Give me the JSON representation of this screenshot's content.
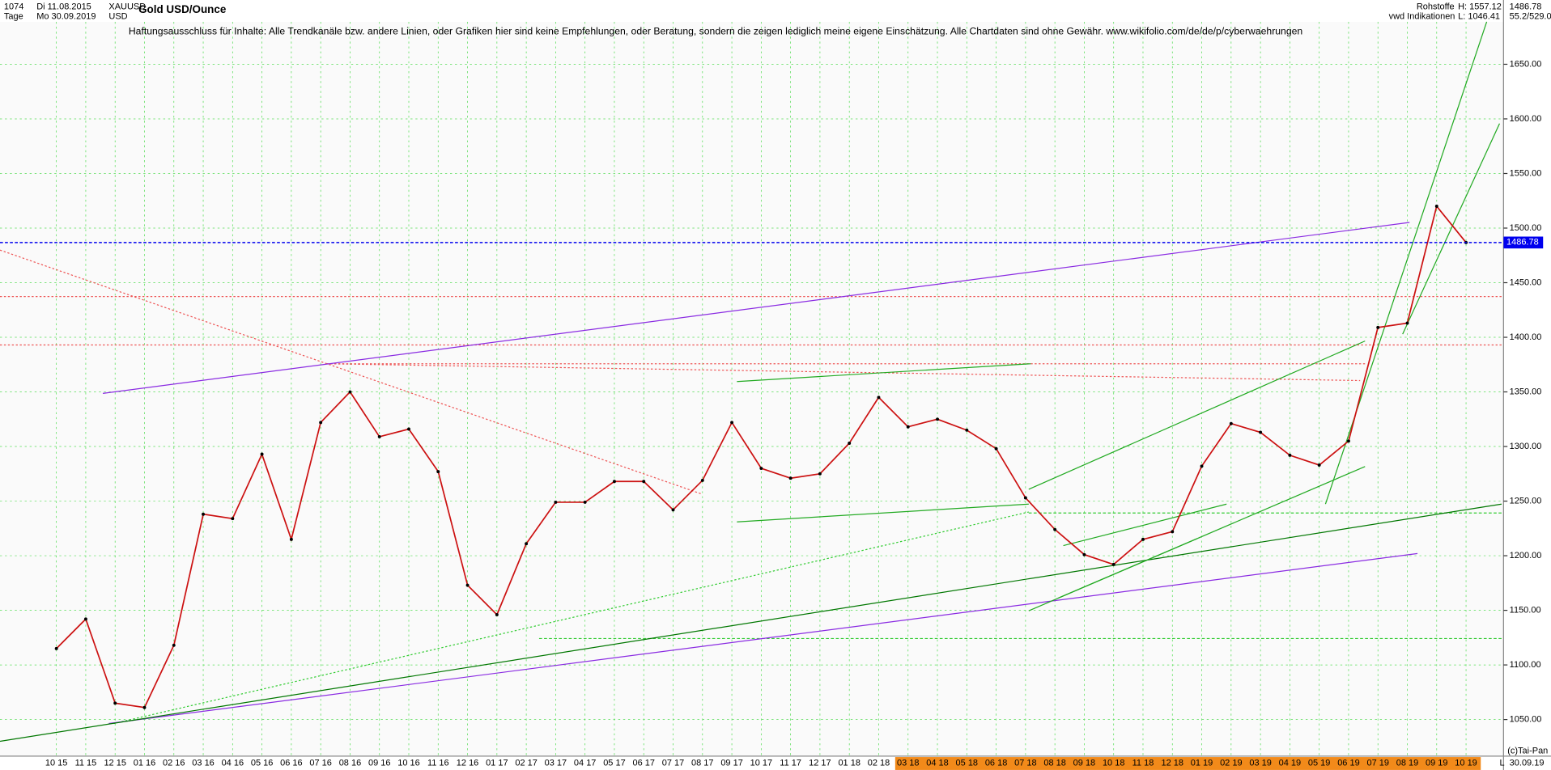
{
  "header": {
    "id": "1074",
    "start_label": "Di 11.08.2015",
    "symbol": "XAUUSD",
    "period": "Tage",
    "end_label": "Mo 30.09.2019",
    "currency": "USD",
    "group": "Rohstoffe",
    "source": "vwd Indikationen",
    "high": "H: 1557.12",
    "low": "L: 1046.41",
    "last": "1486.78",
    "ratio": "55.2/529.0",
    "disclaimer": "Haftungsausschluss für Inhalte: Alle Trendkanäle bzw. andere Linien, oder Grafiken hier sind keine Empfehlungen, oder Beratung, sondern die zeigen lediglich meine eigene Einschätzung. Alle Chartdaten sind ohne Gewähr.  www.wikifolio.com/de/de/p/cyberwaehrungen",
    "copyright": "(c)Tai-Pan",
    "corner": "L",
    "last_date": "30.09.19"
  },
  "chart_data": {
    "type": "line",
    "title": "Gold USD/Ounce",
    "color": "#cc1111",
    "grid": true,
    "categories": [
      "10 15",
      "11 15",
      "12 15",
      "01 16",
      "02 16",
      "03 16",
      "04 16",
      "05 16",
      "06 16",
      "07 16",
      "08 16",
      "09 16",
      "10 16",
      "11 16",
      "12 16",
      "01 17",
      "02 17",
      "03 17",
      "04 17",
      "05 17",
      "06 17",
      "07 17",
      "08 17",
      "09 17",
      "10 17",
      "11 17",
      "12 17",
      "01 18",
      "02 18",
      "03 18",
      "04 18",
      "05 18",
      "06 18",
      "07 18",
      "08 18",
      "09 18",
      "10 18",
      "11 18",
      "12 18",
      "01 19",
      "02 19",
      "03 19",
      "04 19",
      "05 19",
      "06 19",
      "07 19",
      "08 19",
      "09 19",
      "10 19"
    ],
    "values": [
      1115,
      1142,
      1065,
      1061,
      1118,
      1238,
      1234,
      1293,
      1215,
      1322,
      1350,
      1309,
      1316,
      1277,
      1173,
      1146,
      1211,
      1249,
      1249,
      1268,
      1268,
      1242,
      1269,
      1322,
      1280,
      1271,
      1275,
      1303,
      1345,
      1318,
      1325,
      1315,
      1298,
      1253,
      1224,
      1201,
      1192,
      1215,
      1222,
      1282,
      1321,
      1313,
      1292,
      1283,
      1305,
      1409,
      1413,
      1520,
      1486.78
    ],
    "last_price": 1486.78,
    "last_price_label": "1486.78",
    "last_color": "#0000ee",
    "ylim": [
      1016.5,
      1688.9
    ],
    "yticks": [
      {
        "value": 1050,
        "label": "1050.00"
      },
      {
        "value": 1100,
        "label": "1100.00"
      },
      {
        "value": 1150,
        "label": "1150.00"
      },
      {
        "value": 1200,
        "label": "1200.00"
      },
      {
        "value": 1250,
        "label": "1250.00"
      },
      {
        "value": 1300,
        "label": "1300.00"
      },
      {
        "value": 1350,
        "label": "1350.00"
      },
      {
        "value": 1400,
        "label": "1400.00"
      },
      {
        "value": 1450,
        "label": "1450.00"
      },
      {
        "value": 1500,
        "label": "1500.00"
      },
      {
        "value": 1550,
        "label": "1550.00"
      },
      {
        "value": 1600,
        "label": "1600.00"
      },
      {
        "value": 1650,
        "label": "1650.00"
      }
    ]
  }
}
